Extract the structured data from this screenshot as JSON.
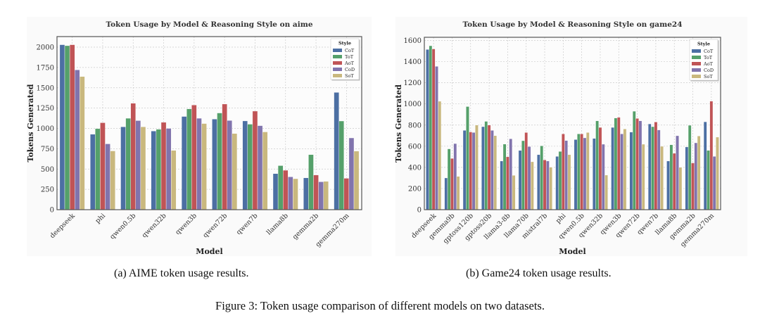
{
  "colors": {
    "CoT": "#4c6fa3",
    "ToT": "#55a06a",
    "AoT": "#c05456",
    "CoD": "#8174ad",
    "SoT": "#c9b87e",
    "plot_bg": "#fcfcfc",
    "grid": "#cccccc",
    "frame": "#555555"
  },
  "captions": {
    "a": "(a) AIME token usage results.",
    "b": "(b) Game24 token usage results.",
    "figure": "Figure 3: Token usage comparison of different models on two datasets."
  },
  "chart_data": [
    {
      "type": "bar",
      "title": "Token Usage by Model & Reasoning Style on aime",
      "xlabel": "Model",
      "ylabel": "Tokens Generated",
      "ylim": [
        0,
        2130
      ],
      "yticks": [
        0,
        250,
        500,
        750,
        1000,
        1250,
        1500,
        1750,
        2000
      ],
      "grid": true,
      "legend": {
        "title": "Style",
        "placement": "top-right"
      },
      "categories": [
        "deepseek",
        "phi",
        "qwen0.5b",
        "qwen32b",
        "qwen3b",
        "qwen72b",
        "qwen7b",
        "llama8b",
        "gemma2b",
        "gemma270m"
      ],
      "series": [
        {
          "name": "CoT",
          "values": [
            2030,
            928,
            1020,
            968,
            1147,
            1115,
            1092,
            444,
            392,
            1443
          ]
        },
        {
          "name": "ToT",
          "values": [
            2018,
            997,
            1125,
            990,
            1240,
            1190,
            1052,
            542,
            678,
            1091
          ]
        },
        {
          "name": "AoT",
          "values": [
            2030,
            1070,
            1310,
            1075,
            1288,
            1300,
            1213,
            485,
            427,
            386
          ]
        },
        {
          "name": "CoD",
          "values": [
            1720,
            810,
            1096,
            1000,
            1125,
            1098,
            1034,
            404,
            343,
            883
          ]
        },
        {
          "name": "SoT",
          "values": [
            1638,
            723,
            1020,
            730,
            1060,
            937,
            957,
            381,
            349,
            721
          ]
        }
      ]
    },
    {
      "type": "bar",
      "title": "Token Usage by Model & Reasoning Style on game24",
      "xlabel": "Model",
      "ylabel": "Tokens Generated",
      "ylim": [
        0,
        1630
      ],
      "yticks": [
        0,
        200,
        400,
        600,
        800,
        1000,
        1200,
        1400,
        1600
      ],
      "grid": true,
      "legend": {
        "title": "Style",
        "placement": "top-right"
      },
      "categories": [
        "deepseek",
        "gemma9b",
        "gptoss120b",
        "gptoss20b",
        "llama3-8b",
        "llama70b",
        "mistral7b",
        "phi",
        "qwen0.5b",
        "qwen32b",
        "qwen3b",
        "qwen72b",
        "qwen7b",
        "llama8b",
        "gemma2b",
        "gemma270m"
      ],
      "series": [
        {
          "name": "CoT",
          "values": [
            1515,
            300,
            750,
            785,
            460,
            560,
            520,
            504,
            663,
            674,
            778,
            734,
            811,
            460,
            593,
            831
          ]
        },
        {
          "name": "ToT",
          "values": [
            1550,
            575,
            975,
            835,
            620,
            652,
            604,
            551,
            717,
            840,
            867,
            931,
            785,
            614,
            798,
            561
          ]
        },
        {
          "name": "AoT",
          "values": [
            1520,
            485,
            735,
            800,
            500,
            730,
            471,
            717,
            717,
            778,
            873,
            863,
            829,
            533,
            442,
            1026
          ]
        },
        {
          "name": "CoD",
          "values": [
            1355,
            625,
            730,
            750,
            670,
            597,
            460,
            654,
            679,
            619,
            717,
            840,
            754,
            699,
            632,
            504
          ]
        },
        {
          "name": "SoT",
          "values": [
            1025,
            315,
            800,
            700,
            325,
            453,
            402,
            520,
            730,
            327,
            763,
            619,
            599,
            400,
            697,
            686
          ]
        }
      ]
    }
  ]
}
